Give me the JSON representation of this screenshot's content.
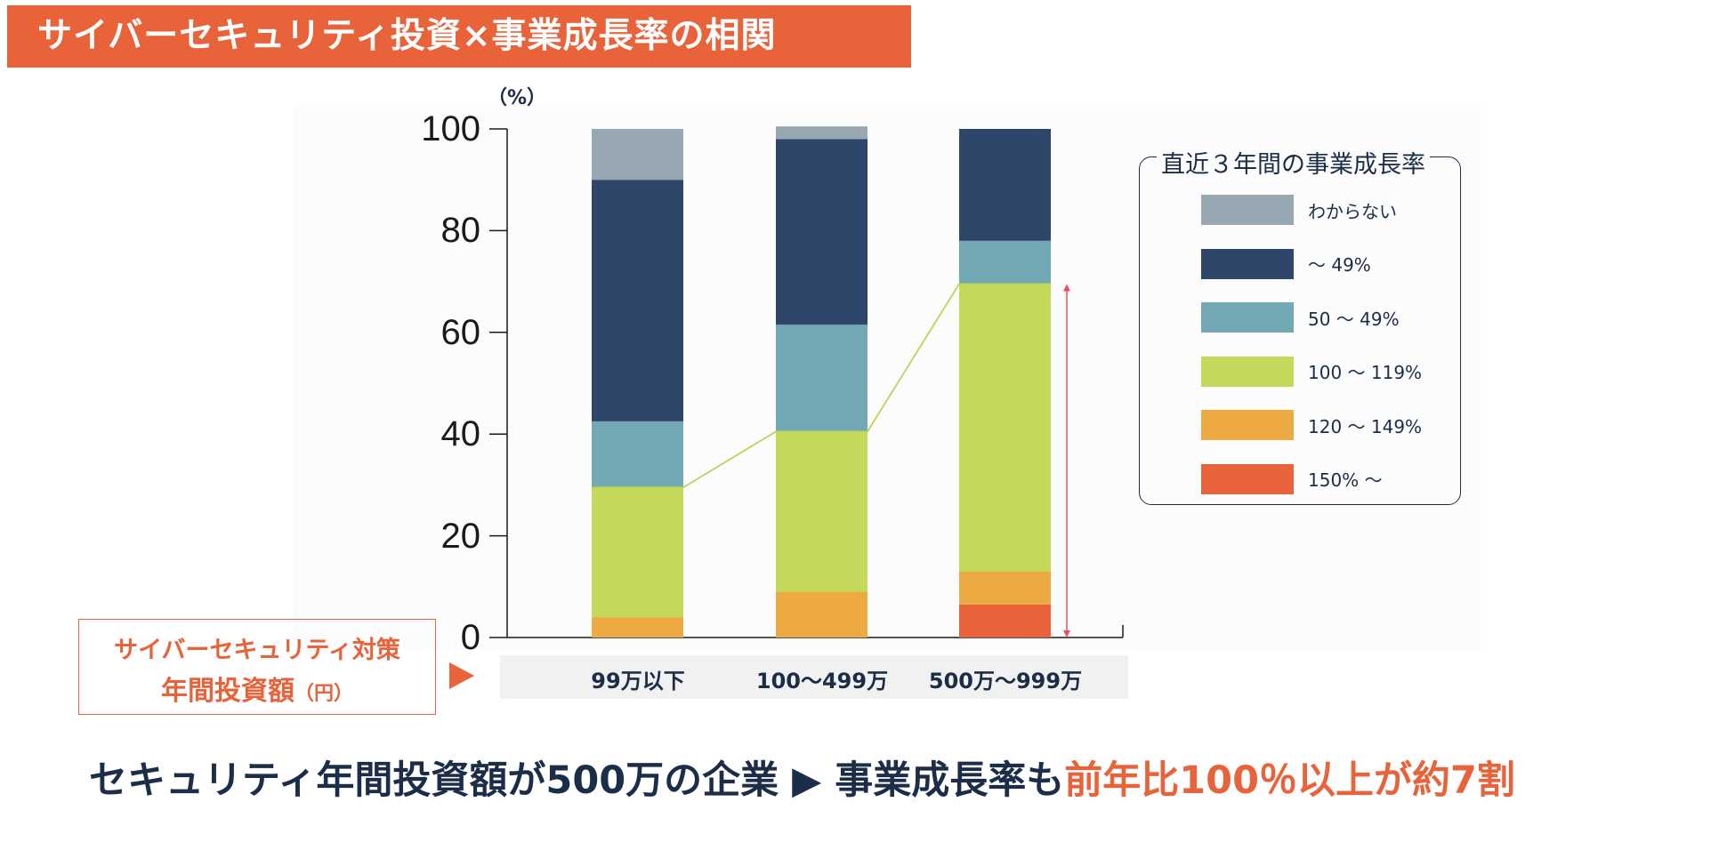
{
  "title": "サイバーセキュリティ投資×事業成長率の相関",
  "chart_data": {
    "type": "bar",
    "stacked": true,
    "unit_label": "（%）",
    "ylim": [
      0,
      100
    ],
    "yticks": [
      0,
      20,
      40,
      60,
      80,
      100
    ],
    "categories": [
      "99万以下",
      "100〜499万",
      "500万〜999万"
    ],
    "legend_title": "直近３年間の事業成長率",
    "legend_order": [
      "わからない",
      "〜 49%",
      "50 〜 49%",
      "100 〜 119%",
      "120 〜 149%",
      "150% 〜"
    ],
    "series": [
      {
        "name": "150% 〜",
        "color": "#e8623a",
        "values": [
          0,
          0,
          6.5
        ]
      },
      {
        "name": "120 〜 149%",
        "color": "#eeaa42",
        "values": [
          4,
          9,
          6.5
        ]
      },
      {
        "name": "100 〜 119%",
        "color": "#c4d95a",
        "values": [
          25.5,
          31.5,
          56.5
        ]
      },
      {
        "name": "50 〜 49%",
        "color": "#72a9b5",
        "values": [
          13,
          21,
          8.5
        ]
      },
      {
        "name": "〜 49%",
        "color": "#2f466b",
        "values": [
          47.5,
          36.5,
          22
        ]
      },
      {
        "name": "わからない",
        "color": "#98a8b2",
        "values": [
          10,
          2.5,
          0
        ]
      }
    ],
    "connector_line": {
      "color": "#b9d55a",
      "values": [
        29.5,
        40.5,
        69.5
      ]
    },
    "highlight_arrow": {
      "color": "#e8505a",
      "from": 0,
      "to": 69.5,
      "category_index": 2
    }
  },
  "side_label": {
    "line1": "サイバーセキュリティ対策",
    "line2_main": "年間投資額",
    "line2_unit": "（円）"
  },
  "conclusion": {
    "part1": "セキュリティ年間投資額が500万の企業",
    "arrow": "▶",
    "part2": "事業成長率も",
    "highlight": "前年比100％以上が約7割"
  },
  "colors": {
    "accent": "#e8623a",
    "navy": "#1c2d48"
  }
}
